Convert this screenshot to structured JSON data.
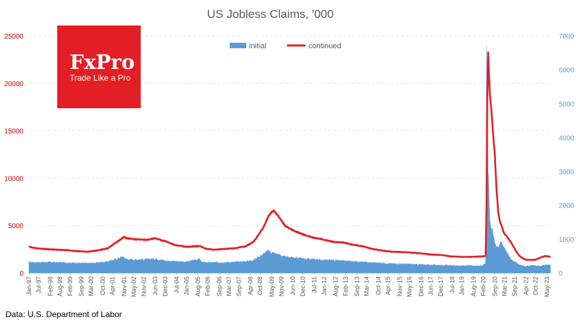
{
  "chart_data": {
    "type": "area+line",
    "title": "US Jobless Claims, '000",
    "source": "Data: U.S. Department of Labor",
    "legend": {
      "placement": "top-center",
      "initial_label": "initial",
      "continued_label": "continued"
    },
    "colors": {
      "initial": "#5b9bd5",
      "continued": "#e31e24",
      "left_axis": "#c00000",
      "right_axis": "#5b9bd5"
    },
    "left_axis": {
      "min": 0,
      "max": 25000,
      "ticks": [
        0,
        5000,
        10000,
        15000,
        20000,
        25000
      ],
      "series": "continued"
    },
    "right_axis": {
      "min": 0,
      "max": 7000,
      "ticks": [
        0,
        1000,
        2000,
        3000,
        4000,
        5000,
        6000,
        7000
      ],
      "series": "initial"
    },
    "x_range": [
      "1997-01",
      "2023-07"
    ],
    "x_tick_labels": [
      "Jan-97",
      "Jul-97",
      "Feb-98",
      "Aug-98",
      "Feb-99",
      "Sep-99",
      "Mar-00",
      "Oct-00",
      "Apr-01",
      "Nov-01",
      "May-02",
      "Nov-02",
      "Jun-03",
      "Dec-03",
      "Jul-04",
      "Jan-05",
      "Aug-05",
      "Feb-06",
      "Sep-06",
      "Mar-07",
      "Sep-07",
      "Apr-08",
      "Oct-08",
      "May-09",
      "Nov-09",
      "Jun-10",
      "Dec-10",
      "Jul-11",
      "Jan-12",
      "Aug-12",
      "Feb-13",
      "Sep-13",
      "Mar-14",
      "Oct-14",
      "Apr-15",
      "Nov-15",
      "May-16",
      "Dec-16",
      "Jun-17",
      "Dec-17",
      "Jul-18",
      "Jan-19",
      "Aug-19",
      "Feb-20",
      "Sep-20",
      "Mar-21",
      "Sep-21",
      "Apr-22",
      "Oct-22",
      "May-23"
    ],
    "x_tick_dates": [
      "1997-01",
      "1997-07",
      "1998-02",
      "1998-08",
      "1999-02",
      "1999-09",
      "2000-03",
      "2000-10",
      "2001-04",
      "2001-11",
      "2002-05",
      "2002-11",
      "2003-06",
      "2003-12",
      "2004-07",
      "2005-01",
      "2005-08",
      "2006-02",
      "2006-09",
      "2007-03",
      "2007-09",
      "2008-04",
      "2008-10",
      "2009-05",
      "2009-11",
      "2010-06",
      "2010-12",
      "2011-07",
      "2012-01",
      "2012-08",
      "2013-02",
      "2013-09",
      "2014-03",
      "2014-10",
      "2015-04",
      "2015-11",
      "2016-05",
      "2016-12",
      "2017-06",
      "2017-12",
      "2018-07",
      "2019-01",
      "2019-08",
      "2020-02",
      "2020-09",
      "2021-03",
      "2021-09",
      "2022-04",
      "2022-10",
      "2023-05"
    ],
    "continued": [
      [
        "1997-01-01",
        2750
      ],
      [
        "1997-06-01",
        2600
      ],
      [
        "1998-01-01",
        2500
      ],
      [
        "1998-06-01",
        2450
      ],
      [
        "1999-01-01",
        2400
      ],
      [
        "1999-06-01",
        2300
      ],
      [
        "2000-01-01",
        2250
      ],
      [
        "2000-06-01",
        2350
      ],
      [
        "2001-01-01",
        2600
      ],
      [
        "2001-06-01",
        3200
      ],
      [
        "2001-11-01",
        3800
      ],
      [
        "2002-01-01",
        3650
      ],
      [
        "2002-06-01",
        3550
      ],
      [
        "2003-01-01",
        3500
      ],
      [
        "2003-06-01",
        3650
      ],
      [
        "2004-01-01",
        3300
      ],
      [
        "2004-06-01",
        2950
      ],
      [
        "2005-01-01",
        2750
      ],
      [
        "2005-09-01",
        2850
      ],
      [
        "2006-01-01",
        2550
      ],
      [
        "2006-06-01",
        2450
      ],
      [
        "2007-01-01",
        2550
      ],
      [
        "2007-06-01",
        2600
      ],
      [
        "2008-01-01",
        2800
      ],
      [
        "2008-06-01",
        3300
      ],
      [
        "2008-12-01",
        4800
      ],
      [
        "2009-03-01",
        6000
      ],
      [
        "2009-06-01",
        6600
      ],
      [
        "2009-09-01",
        6000
      ],
      [
        "2010-01-01",
        5000
      ],
      [
        "2010-06-01",
        4500
      ],
      [
        "2011-01-01",
        4000
      ],
      [
        "2011-06-01",
        3750
      ],
      [
        "2012-01-01",
        3500
      ],
      [
        "2012-06-01",
        3300
      ],
      [
        "2013-01-01",
        3200
      ],
      [
        "2013-06-01",
        3000
      ],
      [
        "2014-01-01",
        2800
      ],
      [
        "2014-06-01",
        2550
      ],
      [
        "2015-01-01",
        2350
      ],
      [
        "2015-06-01",
        2250
      ],
      [
        "2016-01-01",
        2200
      ],
      [
        "2016-06-01",
        2150
      ],
      [
        "2017-01-01",
        2050
      ],
      [
        "2017-06-01",
        1950
      ],
      [
        "2018-01-01",
        1900
      ],
      [
        "2018-06-01",
        1750
      ],
      [
        "2019-01-01",
        1700
      ],
      [
        "2019-06-01",
        1700
      ],
      [
        "2020-01-01",
        1750
      ],
      [
        "2020-03-15",
        1800
      ],
      [
        "2020-04-01",
        7400
      ],
      [
        "2020-04-15",
        18000
      ],
      [
        "2020-05-01",
        23000
      ],
      [
        "2020-05-15",
        21000
      ],
      [
        "2020-06-01",
        19000
      ],
      [
        "2020-07-01",
        17000
      ],
      [
        "2020-08-01",
        14500
      ],
      [
        "2020-09-01",
        12500
      ],
      [
        "2020-10-01",
        9000
      ],
      [
        "2020-11-01",
        6500
      ],
      [
        "2020-12-01",
        5500
      ],
      [
        "2021-01-01",
        5000
      ],
      [
        "2021-03-01",
        4100
      ],
      [
        "2021-05-01",
        3700
      ],
      [
        "2021-07-01",
        3200
      ],
      [
        "2021-09-01",
        2600
      ],
      [
        "2021-11-01",
        2000
      ],
      [
        "2022-01-01",
        1650
      ],
      [
        "2022-04-01",
        1400
      ],
      [
        "2022-07-01",
        1380
      ],
      [
        "2022-10-01",
        1400
      ],
      [
        "2023-01-01",
        1650
      ],
      [
        "2023-04-01",
        1800
      ],
      [
        "2023-07-01",
        1700
      ]
    ],
    "initial": [
      [
        "1997-01-01",
        320
      ],
      [
        "1997-06-01",
        315
      ],
      [
        "1998-01-01",
        320
      ],
      [
        "1998-06-01",
        310
      ],
      [
        "1999-01-01",
        300
      ],
      [
        "1999-06-01",
        295
      ],
      [
        "2000-01-01",
        285
      ],
      [
        "2000-06-01",
        300
      ],
      [
        "2001-01-01",
        340
      ],
      [
        "2001-06-01",
        400
      ],
      [
        "2001-10-01",
        480
      ],
      [
        "2002-01-01",
        400
      ],
      [
        "2002-06-01",
        395
      ],
      [
        "2003-01-01",
        400
      ],
      [
        "2003-06-01",
        420
      ],
      [
        "2004-01-01",
        355
      ],
      [
        "2004-06-01",
        340
      ],
      [
        "2005-01-01",
        330
      ],
      [
        "2005-09-01",
        410
      ],
      [
        "2005-10-01",
        330
      ],
      [
        "2006-01-01",
        310
      ],
      [
        "2006-06-01",
        310
      ],
      [
        "2007-01-01",
        315
      ],
      [
        "2007-06-01",
        320
      ],
      [
        "2008-01-01",
        340
      ],
      [
        "2008-06-01",
        380
      ],
      [
        "2008-12-01",
        560
      ],
      [
        "2009-03-01",
        650
      ],
      [
        "2009-06-01",
        590
      ],
      [
        "2009-09-01",
        550
      ],
      [
        "2010-01-01",
        470
      ],
      [
        "2010-06-01",
        460
      ],
      [
        "2011-01-01",
        420
      ],
      [
        "2011-06-01",
        410
      ],
      [
        "2012-01-01",
        375
      ],
      [
        "2012-06-01",
        375
      ],
      [
        "2013-01-01",
        350
      ],
      [
        "2013-06-01",
        345
      ],
      [
        "2014-01-01",
        320
      ],
      [
        "2014-06-01",
        305
      ],
      [
        "2015-01-01",
        290
      ],
      [
        "2015-06-01",
        275
      ],
      [
        "2016-01-01",
        270
      ],
      [
        "2016-06-01",
        260
      ],
      [
        "2017-01-01",
        245
      ],
      [
        "2017-06-01",
        240
      ],
      [
        "2018-01-01",
        230
      ],
      [
        "2018-06-01",
        220
      ],
      [
        "2019-01-01",
        215
      ],
      [
        "2019-06-01",
        215
      ],
      [
        "2020-01-01",
        215
      ],
      [
        "2020-03-15",
        280
      ],
      [
        "2020-03-22",
        3300
      ],
      [
        "2020-04-01",
        6900
      ],
      [
        "2020-04-15",
        5000
      ],
      [
        "2020-05-01",
        3200
      ],
      [
        "2020-06-01",
        1500
      ],
      [
        "2020-07-01",
        1400
      ],
      [
        "2020-08-01",
        1100
      ],
      [
        "2020-09-01",
        900
      ],
      [
        "2020-10-01",
        800
      ],
      [
        "2020-11-01",
        780
      ],
      [
        "2021-01-01",
        900
      ],
      [
        "2021-03-01",
        750
      ],
      [
        "2021-05-01",
        550
      ],
      [
        "2021-07-01",
        400
      ],
      [
        "2021-09-01",
        350
      ],
      [
        "2021-11-01",
        260
      ],
      [
        "2022-01-01",
        230
      ],
      [
        "2022-04-01",
        190
      ],
      [
        "2022-07-01",
        230
      ],
      [
        "2022-10-01",
        215
      ],
      [
        "2023-01-01",
        200
      ],
      [
        "2023-04-01",
        240
      ],
      [
        "2023-07-01",
        235
      ]
    ]
  },
  "logo": {
    "brand": "FxPro",
    "tagline": "Trade Like a Pro",
    "color": "#e31e24"
  }
}
